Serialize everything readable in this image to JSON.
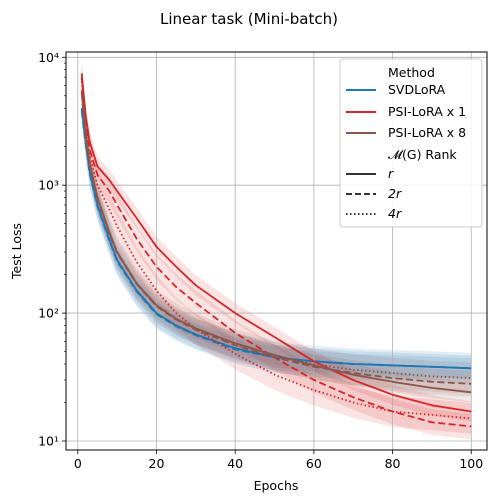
{
  "chart_data": {
    "type": "line",
    "title": "Linear task (Mini-batch)",
    "xlabel": "Epochs",
    "ylabel": "Test Loss",
    "xlim": [
      -3,
      104
    ],
    "ylim": [
      8.5,
      11000
    ],
    "yscale": "log",
    "grid": true,
    "legend_position": "top-right",
    "x_ticks": [
      0,
      20,
      40,
      60,
      80,
      100
    ],
    "y_ticks": [
      {
        "value": 10,
        "label": "10¹"
      },
      {
        "value": 100,
        "label": "10²"
      },
      {
        "value": 1000,
        "label": "10³"
      },
      {
        "value": 10000,
        "label": "10⁴"
      }
    ],
    "legend": {
      "method_title": "Method",
      "methods": [
        {
          "label": "SVDLoRA",
          "color": "#1f77b4"
        },
        {
          "label": "PSI-LoRA x 1",
          "color": "#d62728"
        },
        {
          "label": "PSI-LoRA x 8",
          "color": "#8c564b"
        }
      ],
      "rank_title": "𝓜(G) Rank",
      "ranks": [
        {
          "label": "r",
          "style": "solid"
        },
        {
          "label": "2r",
          "style": "dashed"
        },
        {
          "label": "4r",
          "style": "dotted"
        }
      ]
    },
    "series": [
      {
        "method": "SVDLoRA",
        "rank": "r",
        "color": "#1f77b4",
        "style": "solid",
        "x": [
          1,
          2,
          3,
          5,
          8,
          10,
          15,
          20,
          25,
          30,
          40,
          50,
          60,
          70,
          80,
          90,
          100
        ],
        "y": [
          4000,
          2200,
          1300,
          700,
          380,
          260,
          150,
          100,
          80,
          68,
          53,
          45,
          42,
          40,
          39,
          38,
          37
        ]
      },
      {
        "method": "SVDLoRA",
        "rank": "2r",
        "color": "#1f77b4",
        "style": "dashed",
        "x": [
          1,
          2,
          3,
          5,
          8,
          10,
          15,
          20,
          25,
          30,
          40,
          50,
          60,
          70,
          80,
          90,
          100
        ],
        "y": [
          3800,
          2100,
          1250,
          680,
          370,
          255,
          147,
          98,
          79,
          67,
          52,
          45,
          42,
          40,
          39,
          38,
          37
        ]
      },
      {
        "method": "SVDLoRA",
        "rank": "4r",
        "color": "#1f77b4",
        "style": "dotted",
        "x": [
          1,
          2,
          3,
          5,
          8,
          10,
          15,
          20,
          25,
          30,
          40,
          50,
          60,
          70,
          80,
          90,
          100
        ],
        "y": [
          3900,
          2150,
          1280,
          690,
          375,
          258,
          149,
          99,
          80,
          68,
          53,
          45,
          42,
          40,
          39,
          38,
          37
        ]
      },
      {
        "method": "PSI-LoRA x 1",
        "rank": "r",
        "color": "#d62728",
        "style": "solid",
        "x": [
          1,
          2,
          3,
          5,
          8,
          10,
          15,
          20,
          25,
          30,
          40,
          50,
          60,
          70,
          80,
          90,
          100
        ],
        "y": [
          7500,
          3500,
          2200,
          1400,
          1100,
          900,
          550,
          330,
          230,
          165,
          100,
          65,
          42,
          30,
          23,
          19,
          17
        ]
      },
      {
        "method": "PSI-LoRA x 1",
        "rank": "2r",
        "color": "#d62728",
        "style": "dashed",
        "x": [
          1,
          2,
          3,
          5,
          8,
          10,
          15,
          20,
          25,
          30,
          40,
          50,
          60,
          70,
          80,
          90,
          100
        ],
        "y": [
          7000,
          3000,
          1900,
          1200,
          900,
          700,
          380,
          230,
          160,
          120,
          70,
          45,
          30,
          22,
          17,
          14,
          13
        ]
      },
      {
        "method": "PSI-LoRA x 1",
        "rank": "4r",
        "color": "#d62728",
        "style": "dotted",
        "x": [
          1,
          2,
          3,
          5,
          8,
          10,
          15,
          20,
          25,
          30,
          40,
          50,
          60,
          70,
          80,
          90,
          100
        ],
        "y": [
          6500,
          2800,
          1700,
          1000,
          650,
          480,
          250,
          150,
          100,
          75,
          48,
          33,
          25,
          20,
          17,
          16,
          15
        ]
      },
      {
        "method": "PSI-LoRA x 8",
        "rank": "r",
        "color": "#8c564b",
        "style": "solid",
        "x": [
          1,
          2,
          3,
          5,
          8,
          10,
          15,
          20,
          25,
          30,
          40,
          50,
          60,
          70,
          80,
          90,
          100
        ],
        "y": [
          5500,
          2500,
          1500,
          800,
          430,
          300,
          170,
          115,
          90,
          76,
          58,
          47,
          39,
          33,
          29,
          26,
          24
        ]
      },
      {
        "method": "PSI-LoRA x 8",
        "rank": "2r",
        "color": "#8c564b",
        "style": "dashed",
        "x": [
          1,
          2,
          3,
          5,
          8,
          10,
          15,
          20,
          25,
          30,
          40,
          50,
          60,
          70,
          80,
          90,
          100
        ],
        "y": [
          5200,
          2400,
          1450,
          780,
          420,
          295,
          168,
          113,
          89,
          74,
          56,
          45,
          38,
          34,
          31,
          29,
          28
        ]
      },
      {
        "method": "PSI-LoRA x 8",
        "rank": "4r",
        "color": "#8c564b",
        "style": "dotted",
        "x": [
          1,
          2,
          3,
          5,
          8,
          10,
          15,
          20,
          25,
          30,
          40,
          50,
          60,
          70,
          80,
          90,
          100
        ],
        "y": [
          5300,
          2450,
          1470,
          790,
          425,
          298,
          169,
          114,
          90,
          75,
          57,
          46,
          40,
          36,
          34,
          32,
          31
        ]
      }
    ]
  }
}
